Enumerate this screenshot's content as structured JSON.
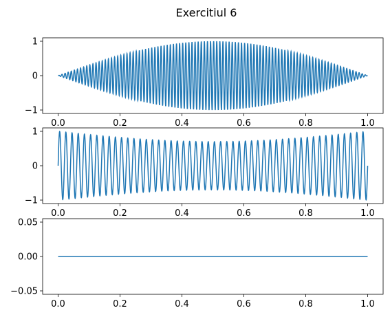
{
  "title": "Exercitiul 6",
  "colors": {
    "line": "#1f77b4",
    "axes": "#000000",
    "background": "#ffffff"
  },
  "chart_data": [
    {
      "type": "line",
      "title": "",
      "xlabel": "",
      "ylabel": "",
      "xlim": [
        -0.05,
        1.05
      ],
      "ylim": [
        -1.1,
        1.1
      ],
      "xticks": [
        0.0,
        0.2,
        0.4,
        0.6,
        0.8,
        1.0
      ],
      "xtick_labels": [
        "0.0",
        "0.2",
        "0.4",
        "0.6",
        "0.8",
        "1.0"
      ],
      "yticks": [
        -1,
        0,
        1
      ],
      "ytick_labels": [
        "−1",
        "0",
        "1"
      ],
      "grid": false,
      "signal": {
        "form": "sin(pi*x) * sin(2*pi*f*x)",
        "f": 100,
        "x_range": [
          0,
          1
        ],
        "y_range": [
          -1,
          1
        ]
      }
    },
    {
      "type": "line",
      "title": "",
      "xlabel": "",
      "ylabel": "",
      "xlim": [
        -0.05,
        1.05
      ],
      "ylim": [
        -1.1,
        1.1
      ],
      "xticks": [
        0.0,
        0.2,
        0.4,
        0.6,
        0.8,
        1.0
      ],
      "xtick_labels": [
        "0.0",
        "0.2",
        "0.4",
        "0.6",
        "0.8",
        "1.0"
      ],
      "yticks": [
        -1,
        0,
        1
      ],
      "ytick_labels": [
        "−1",
        "0",
        "1"
      ],
      "grid": false,
      "signal": {
        "form": "sampled sinusoid, aliased envelope",
        "cycles": 50,
        "x_range": [
          0,
          1
        ],
        "y_range": [
          -1,
          1
        ],
        "min_envelope_amplitude": 0.7
      }
    },
    {
      "type": "line",
      "title": "",
      "xlabel": "",
      "ylabel": "",
      "xlim": [
        -0.05,
        1.05
      ],
      "ylim": [
        -0.055,
        0.055
      ],
      "xticks": [
        0.0,
        0.2,
        0.4,
        0.6,
        0.8,
        1.0
      ],
      "xtick_labels": [
        "0.0",
        "0.2",
        "0.4",
        "0.6",
        "0.8",
        "1.0"
      ],
      "yticks": [
        -0.05,
        0.0,
        0.05
      ],
      "ytick_labels": [
        "−0.05",
        "0.00",
        "0.05"
      ],
      "grid": false,
      "x": [
        0,
        1
      ],
      "y": [
        0,
        0
      ]
    }
  ]
}
